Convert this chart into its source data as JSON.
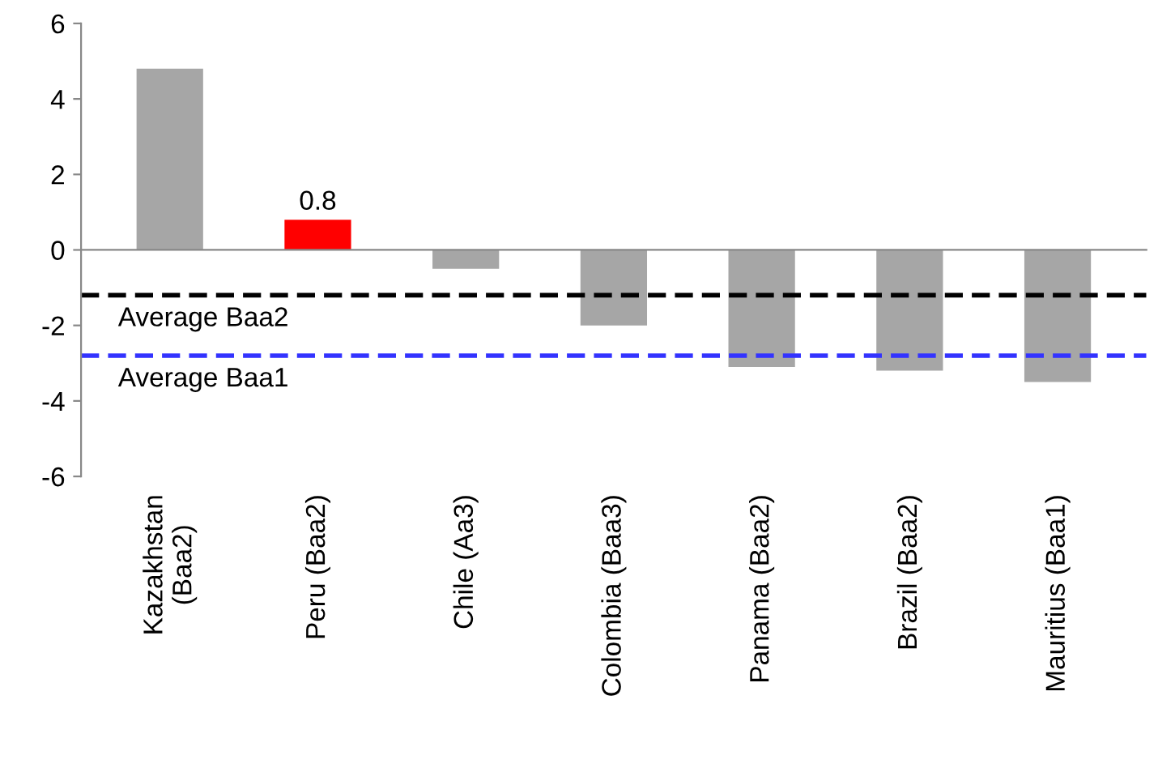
{
  "chart_data": {
    "type": "bar",
    "categories": [
      "Kazakhstan\n(Baa2)",
      "Peru (Baa2)",
      "Chile (Aa3)",
      "Colombia (Baa3)",
      "Panama (Baa2)",
      "Brazil (Baa2)",
      "Mauritius (Baa1)"
    ],
    "values": [
      4.8,
      0.8,
      -0.5,
      -2.0,
      -3.1,
      -3.2,
      -3.5
    ],
    "colors": [
      "#a6a6a6",
      "#ff0000",
      "#a6a6a6",
      "#a6a6a6",
      "#a6a6a6",
      "#a6a6a6",
      "#a6a6a6"
    ],
    "value_labels": [
      null,
      "0.8",
      null,
      null,
      null,
      null,
      null
    ],
    "ylim": [
      -6,
      6
    ],
    "yticks": [
      -6,
      -4,
      -2,
      0,
      2,
      4,
      6
    ],
    "ref_lines": [
      {
        "axis": "y",
        "value": -1.2,
        "label": "Average Baa2",
        "color": "#000000",
        "line_style": "dashed"
      },
      {
        "axis": "y",
        "value": -2.8,
        "label": "Average Baa1",
        "color": "#3333ff",
        "line_style": "dashed"
      }
    ],
    "legend": false
  }
}
